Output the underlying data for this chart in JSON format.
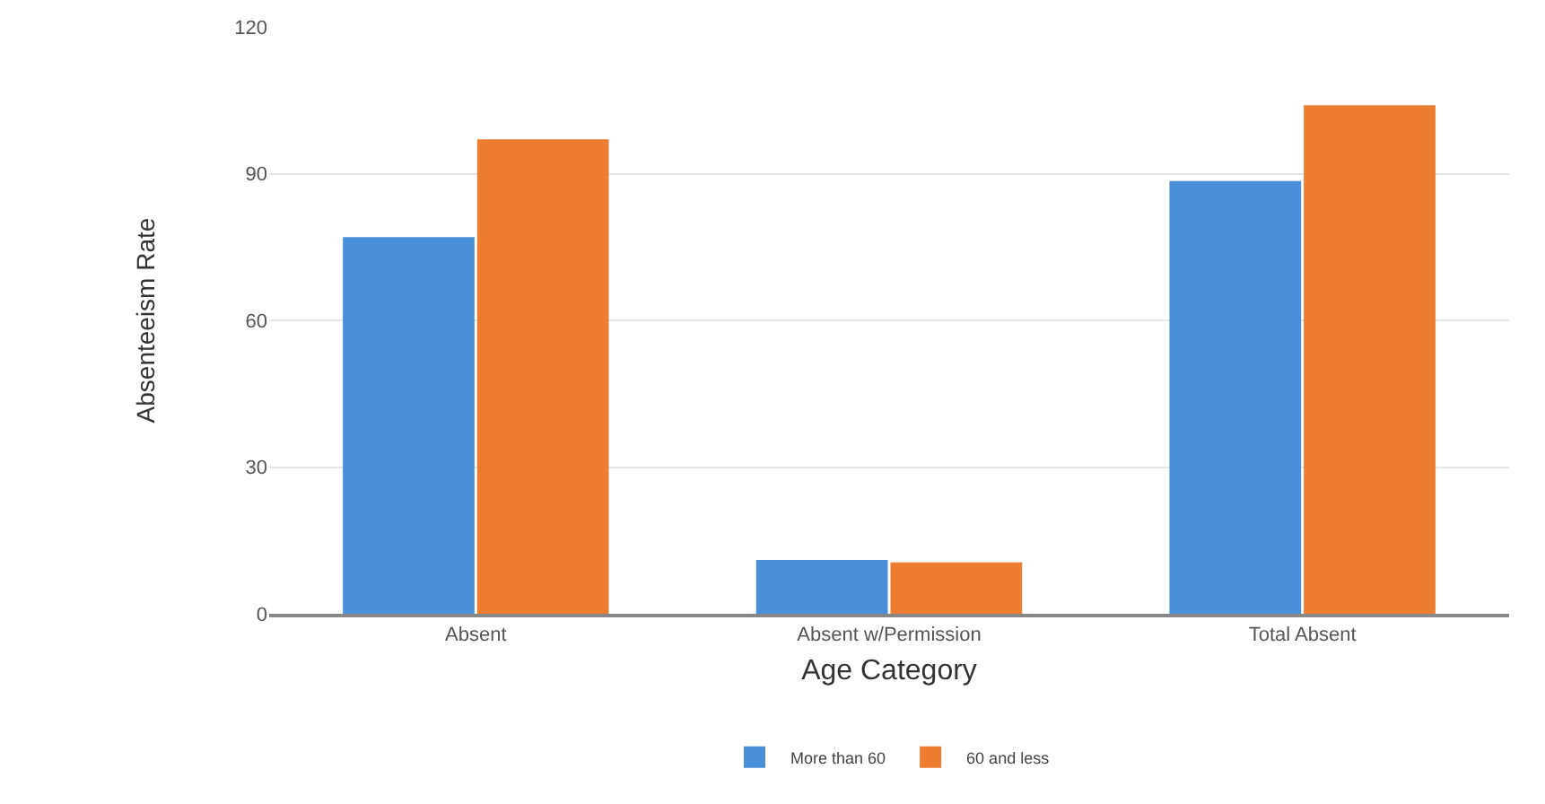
{
  "chart_data": {
    "type": "bar",
    "xlabel": "Age Category",
    "ylabel": "Absenteeism Rate",
    "categories": [
      "Absent",
      "Absent w/Permission",
      "Total Absent"
    ],
    "series": [
      {
        "name": "More than 60",
        "color": "#4a90d9",
        "values": [
          77,
          11,
          88.5
        ]
      },
      {
        "name": "60 and less",
        "color": "#ed7d31",
        "values": [
          97,
          10.5,
          104
        ]
      }
    ],
    "ylim": [
      0,
      120
    ],
    "yticks": [
      0,
      30,
      60,
      90,
      120
    ],
    "grid": "y",
    "legend": "bottom"
  }
}
